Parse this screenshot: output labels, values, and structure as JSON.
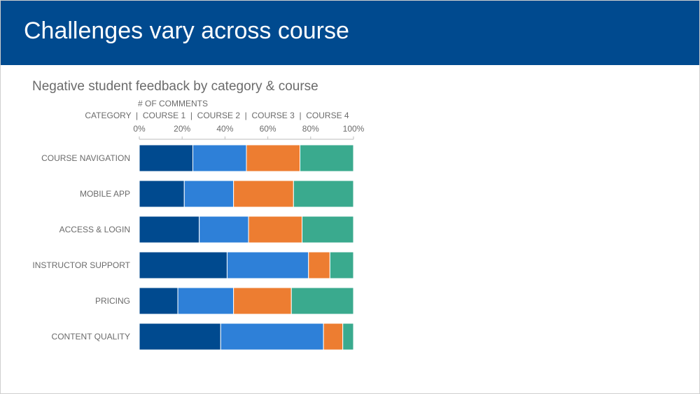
{
  "slide": {
    "title": "Challenges vary across course",
    "subtitle": "Negative student feedback by category & course"
  },
  "colors": {
    "header": "#004a8f",
    "course_1": "#004a8f",
    "course_2": "#2e80d8",
    "course_3": "#ed7d31",
    "course_4": "#3aaa8e"
  },
  "chart_data": {
    "type": "bar",
    "orientation": "horizontal",
    "stacked": true,
    "percent_stacked": true,
    "title": "",
    "header_line_1": "# OF COMMENTS",
    "header_line_2": "CATEGORY  |  COURSE 1  |  COURSE 2  |  COURSE 3  |  COURSE 4",
    "categories": [
      "COURSE NAVIGATION",
      "MOBILE APP",
      "ACCESS & LOGIN",
      "INSTRUCTOR SUPPORT",
      "PRICING",
      "CONTENT QUALITY"
    ],
    "xlim": [
      0,
      100
    ],
    "x_ticks": [
      "0%",
      "20%",
      "40%",
      "60%",
      "80%",
      "100%"
    ],
    "grid": false,
    "legend": "none (series named in header)",
    "series": [
      {
        "name": "COURSE 1",
        "values": [
          25,
          21,
          28,
          41,
          18,
          38
        ]
      },
      {
        "name": "COURSE 2",
        "values": [
          25,
          23,
          23,
          38,
          26,
          48
        ]
      },
      {
        "name": "COURSE 3",
        "values": [
          25,
          28,
          25,
          10,
          27,
          9
        ]
      },
      {
        "name": "COURSE 4",
        "values": [
          25,
          28,
          24,
          11,
          29,
          5
        ]
      }
    ]
  }
}
